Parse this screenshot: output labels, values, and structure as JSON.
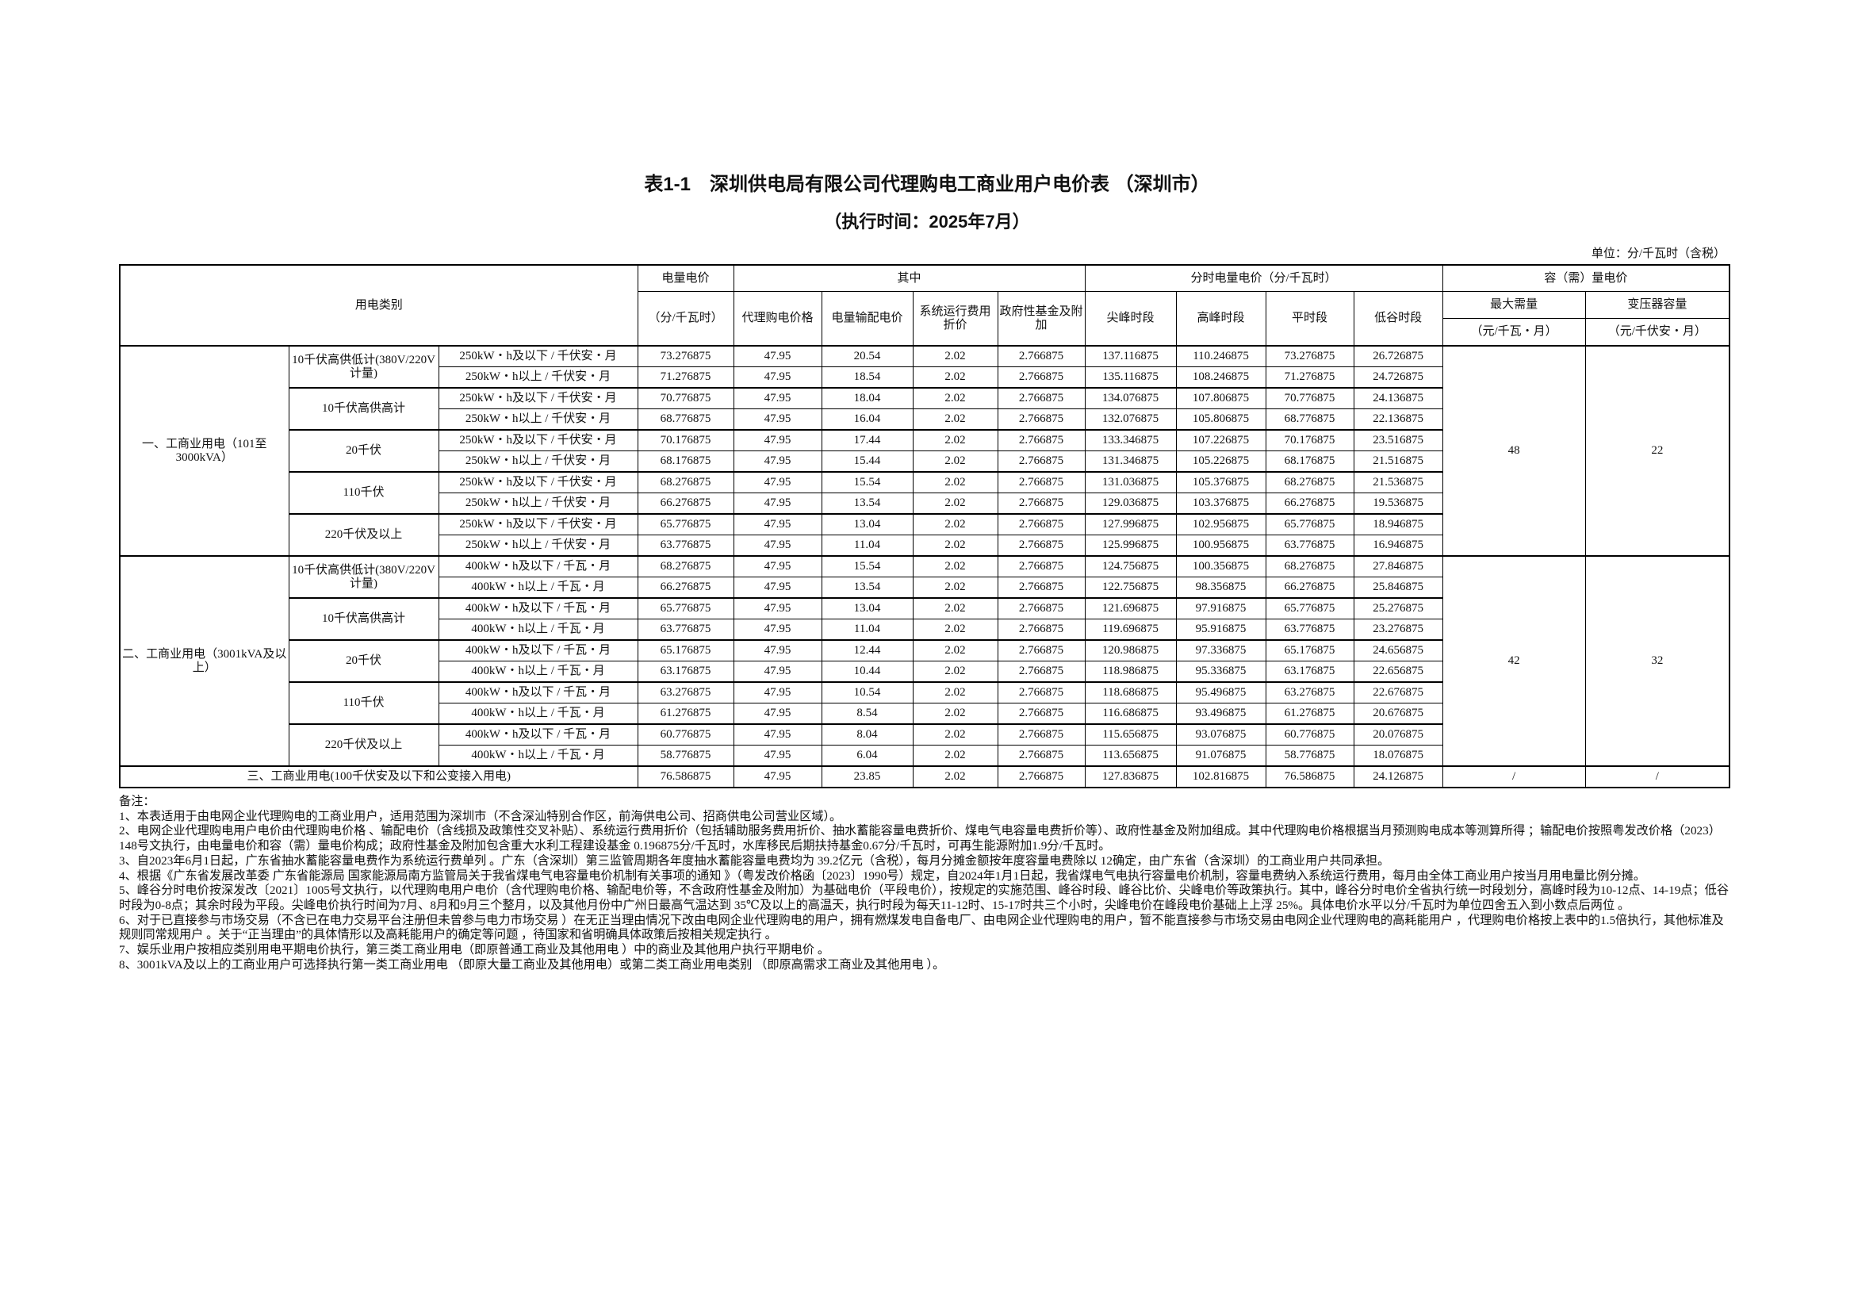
{
  "title": "表1-1　深圳供电局有限公司代理购电工商业用户电价表 （深圳市）",
  "subtitle": "（执行时间：2025年7月）",
  "unit": "单位：分/千瓦时（含税）",
  "header": {
    "category": "用电类别",
    "energy_price": "电量电价",
    "energy_unit": "（分/千瓦时）",
    "of_which": "其中",
    "agent_price": "代理购电价格",
    "transmission": "电量输配电价",
    "system_op": "系统运行费用折价",
    "gov_fund": "政府性基金及附加",
    "tou_title": "分时电量电价（分/千瓦时）",
    "sharp": "尖峰时段",
    "peak": "高峰时段",
    "flat": "平时段",
    "valley": "低谷时段",
    "capacity_title": "容（需）量电价",
    "max_demand": "最大需量",
    "max_demand_unit": "（元/千瓦・月）",
    "transformer": "变压器容量",
    "transformer_unit": "（元/千伏安・月）"
  },
  "groups": [
    {
      "name": "一、工商业用电（101至3000kVA）",
      "capacity_demand": "48",
      "capacity_transformer": "22",
      "voltages": [
        {
          "name": "10千伏高供低计(380V/220V计量)",
          "rows": [
            {
              "tier": "250kW・h及以下 / 千伏安・月",
              "values": [
                "73.276875",
                "47.95",
                "20.54",
                "2.02",
                "2.766875",
                "137.116875",
                "110.246875",
                "73.276875",
                "26.726875"
              ]
            },
            {
              "tier": "250kW・h以上 / 千伏安・月",
              "values": [
                "71.276875",
                "47.95",
                "18.54",
                "2.02",
                "2.766875",
                "135.116875",
                "108.246875",
                "71.276875",
                "24.726875"
              ]
            }
          ]
        },
        {
          "name": "10千伏高供高计",
          "rows": [
            {
              "tier": "250kW・h及以下 / 千伏安・月",
              "values": [
                "70.776875",
                "47.95",
                "18.04",
                "2.02",
                "2.766875",
                "134.076875",
                "107.806875",
                "70.776875",
                "24.136875"
              ]
            },
            {
              "tier": "250kW・h以上 / 千伏安・月",
              "values": [
                "68.776875",
                "47.95",
                "16.04",
                "2.02",
                "2.766875",
                "132.076875",
                "105.806875",
                "68.776875",
                "22.136875"
              ]
            }
          ]
        },
        {
          "name": "20千伏",
          "rows": [
            {
              "tier": "250kW・h及以下 / 千伏安・月",
              "values": [
                "70.176875",
                "47.95",
                "17.44",
                "2.02",
                "2.766875",
                "133.346875",
                "107.226875",
                "70.176875",
                "23.516875"
              ]
            },
            {
              "tier": "250kW・h以上 / 千伏安・月",
              "values": [
                "68.176875",
                "47.95",
                "15.44",
                "2.02",
                "2.766875",
                "131.346875",
                "105.226875",
                "68.176875",
                "21.516875"
              ]
            }
          ]
        },
        {
          "name": "110千伏",
          "rows": [
            {
              "tier": "250kW・h及以下 / 千伏安・月",
              "values": [
                "68.276875",
                "47.95",
                "15.54",
                "2.02",
                "2.766875",
                "131.036875",
                "105.376875",
                "68.276875",
                "21.536875"
              ]
            },
            {
              "tier": "250kW・h以上 / 千伏安・月",
              "values": [
                "66.276875",
                "47.95",
                "13.54",
                "2.02",
                "2.766875",
                "129.036875",
                "103.376875",
                "66.276875",
                "19.536875"
              ]
            }
          ]
        },
        {
          "name": "220千伏及以上",
          "rows": [
            {
              "tier": "250kW・h及以下 / 千伏安・月",
              "values": [
                "65.776875",
                "47.95",
                "13.04",
                "2.02",
                "2.766875",
                "127.996875",
                "102.956875",
                "65.776875",
                "18.946875"
              ]
            },
            {
              "tier": "250kW・h以上 / 千伏安・月",
              "values": [
                "63.776875",
                "47.95",
                "11.04",
                "2.02",
                "2.766875",
                "125.996875",
                "100.956875",
                "63.776875",
                "16.946875"
              ]
            }
          ]
        }
      ]
    },
    {
      "name": "二、工商业用电（3001kVA及以上）",
      "capacity_demand": "42",
      "capacity_transformer": "32",
      "voltages": [
        {
          "name": "10千伏高供低计(380V/220V计量)",
          "rows": [
            {
              "tier": "400kW・h及以下 / 千瓦・月",
              "values": [
                "68.276875",
                "47.95",
                "15.54",
                "2.02",
                "2.766875",
                "124.756875",
                "100.356875",
                "68.276875",
                "27.846875"
              ]
            },
            {
              "tier": "400kW・h以上 / 千瓦・月",
              "values": [
                "66.276875",
                "47.95",
                "13.54",
                "2.02",
                "2.766875",
                "122.756875",
                "98.356875",
                "66.276875",
                "25.846875"
              ]
            }
          ]
        },
        {
          "name": "10千伏高供高计",
          "rows": [
            {
              "tier": "400kW・h及以下 / 千瓦・月",
              "values": [
                "65.776875",
                "47.95",
                "13.04",
                "2.02",
                "2.766875",
                "121.696875",
                "97.916875",
                "65.776875",
                "25.276875"
              ]
            },
            {
              "tier": "400kW・h以上 / 千瓦・月",
              "values": [
                "63.776875",
                "47.95",
                "11.04",
                "2.02",
                "2.766875",
                "119.696875",
                "95.916875",
                "63.776875",
                "23.276875"
              ]
            }
          ]
        },
        {
          "name": "20千伏",
          "rows": [
            {
              "tier": "400kW・h及以下 / 千瓦・月",
              "values": [
                "65.176875",
                "47.95",
                "12.44",
                "2.02",
                "2.766875",
                "120.986875",
                "97.336875",
                "65.176875",
                "24.656875"
              ]
            },
            {
              "tier": "400kW・h以上 / 千瓦・月",
              "values": [
                "63.176875",
                "47.95",
                "10.44",
                "2.02",
                "2.766875",
                "118.986875",
                "95.336875",
                "63.176875",
                "22.656875"
              ]
            }
          ]
        },
        {
          "name": "110千伏",
          "rows": [
            {
              "tier": "400kW・h及以下 / 千瓦・月",
              "values": [
                "63.276875",
                "47.95",
                "10.54",
                "2.02",
                "2.766875",
                "118.686875",
                "95.496875",
                "63.276875",
                "22.676875"
              ]
            },
            {
              "tier": "400kW・h以上 / 千瓦・月",
              "values": [
                "61.276875",
                "47.95",
                "8.54",
                "2.02",
                "2.766875",
                "116.686875",
                "93.496875",
                "61.276875",
                "20.676875"
              ]
            }
          ]
        },
        {
          "name": "220千伏及以上",
          "rows": [
            {
              "tier": "400kW・h及以下 / 千瓦・月",
              "values": [
                "60.776875",
                "47.95",
                "8.04",
                "2.02",
                "2.766875",
                "115.656875",
                "93.076875",
                "60.776875",
                "20.076875"
              ]
            },
            {
              "tier": "400kW・h以上 / 千瓦・月",
              "values": [
                "58.776875",
                "47.95",
                "6.04",
                "2.02",
                "2.766875",
                "113.656875",
                "91.076875",
                "58.776875",
                "18.076875"
              ]
            }
          ]
        }
      ]
    }
  ],
  "row3": {
    "name": "三、工商业用电(100千伏安及以下和公变接入用电)",
    "values": [
      "76.586875",
      "47.95",
      "23.85",
      "2.02",
      "2.766875",
      "127.836875",
      "102.816875",
      "76.586875",
      "24.126875"
    ],
    "capacity_demand": "/",
    "capacity_transformer": "/"
  },
  "notes": {
    "title": "备注：",
    "items": [
      "1、本表适用于由电网企业代理购电的工商业用户，适用范围为深圳市（不含深汕特别合作区，前海供电公司、招商供电公司营业区域）。",
      "2、电网企业代理购电用户电价由代理购电价格 、输配电价（含线损及政策性交叉补贴）、系统运行费用折价（包括辅助服务费用折价、抽水蓄能容量电费折价、煤电气电容量电费折价等）、政府性基金及附加组成。其中代理购电价格根据当月预测购电成本等测算所得 ；输配电价按照粤发改价格（2023）148号文执行，由电量电价和容（需）量电价构成；政府性基金及附加包含重大水利工程建设基金 0.196875分/千瓦时，水库移民后期扶持基金0.67分/千瓦时，可再生能源附加1.9分/千瓦时。",
      "3、自2023年6月1日起，广东省抽水蓄能容量电费作为系统运行费单列 。广东（含深圳）第三监管周期各年度抽水蓄能容量电费均为 39.2亿元（含税），每月分摊金额按年度容量电费除以 12确定，由广东省（含深圳）的工商业用户共同承担。",
      "4、根据《广东省发展改革委 广东省能源局 国家能源局南方监管局关于我省煤电气电容量电价机制有关事项的通知 》（粤发改价格函〔2023〕1990号）规定，自2024年1月1日起，我省煤电气电执行容量电价机制，容量电费纳入系统运行费用，每月由全体工商业用户按当月用电量比例分摊。",
      "5、峰谷分时电价按深发改〔2021〕1005号文执行，以代理购电用户电价（含代理购电价格、输配电价等，不含政府性基金及附加）为基础电价（平段电价），按规定的实施范围、峰谷时段、峰谷比价、尖峰电价等政策执行。其中，峰谷分时电价全省执行统一时段划分，高峰时段为10-12点、14-19点；低谷时段为0-8点；其余时段为平段。尖峰电价执行时间为7月、8月和9月三个整月，以及其他月份中广州日最高气温达到 35℃及以上的高温天，执行时段为每天11-12时、15-17时共三个小时，尖峰电价在峰段电价基础上上浮 25%。具体电价水平以分/千瓦时为单位四舍五入到小数点后两位 。",
      "6、对于已直接参与市场交易（不含已在电力交易平台注册但未曾参与电力市场交易 ）在无正当理由情况下改由电网企业代理购电的用户，拥有燃煤发电自备电厂、由电网企业代理购电的用户，暂不能直接参与市场交易由电网企业代理购电的高耗能用户 ，代理购电价格按上表中的1.5倍执行，其他标准及规则同常规用户 。关于“正当理由”的具体情形以及高耗能用户的确定等问题 ，待国家和省明确具体政策后按相关规定执行 。",
      "7、娱乐业用户按相应类别用电平期电价执行，第三类工商业用电（即原普通工商业及其他用电 ）中的商业及其他用户执行平期电价 。",
      "8、3001kVA及以上的工商业用户可选择执行第一类工商业用电 （即原大量工商业及其他用电）或第二类工商业用电类别 （即原高需求工商业及其他用电 ）。"
    ]
  }
}
